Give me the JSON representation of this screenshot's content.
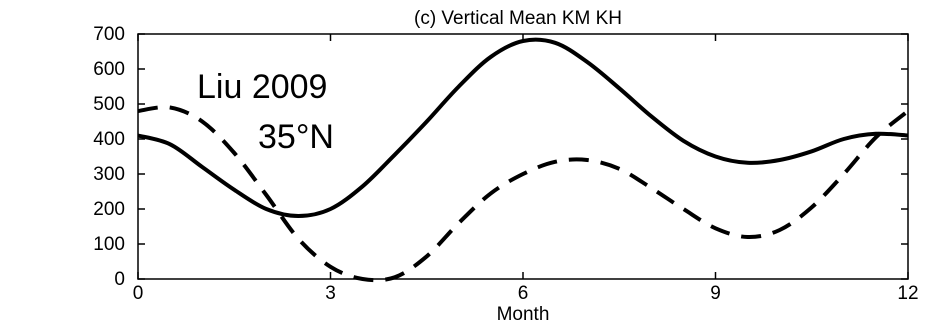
{
  "chart_data": {
    "type": "line",
    "title": "(c) Vertical Mean KM KH",
    "xlabel": "Month",
    "ylabel": "",
    "xlim": [
      0,
      12
    ],
    "ylim": [
      0,
      700
    ],
    "xticks": [
      0,
      3,
      6,
      9,
      12
    ],
    "yticks": [
      0,
      100,
      200,
      300,
      400,
      500,
      600,
      700
    ],
    "grid": false,
    "annotations": [
      "Liu 2009",
      "35°N"
    ],
    "series": [
      {
        "style": "solid",
        "color": "#000000",
        "x": [
          0,
          0.5,
          1,
          1.5,
          2,
          2.5,
          3,
          3.5,
          4,
          4.5,
          5,
          5.5,
          6,
          6.5,
          7,
          7.5,
          8,
          8.5,
          9,
          9.5,
          10,
          10.5,
          11,
          11.5,
          12
        ],
        "y": [
          410,
          385,
          320,
          255,
          200,
          180,
          200,
          265,
          355,
          450,
          550,
          635,
          680,
          675,
          620,
          545,
          465,
          395,
          350,
          332,
          340,
          365,
          400,
          415,
          410
        ]
      },
      {
        "style": "dashed",
        "color": "#000000",
        "x": [
          0,
          0.5,
          1,
          1.5,
          2,
          2.5,
          3,
          3.5,
          4,
          4.5,
          5,
          5.5,
          6,
          6.5,
          7,
          7.5,
          8,
          8.5,
          9,
          9.5,
          10,
          10.5,
          11,
          11.5,
          12
        ],
        "y": [
          480,
          490,
          450,
          360,
          240,
          115,
          35,
          0,
          5,
          65,
          160,
          245,
          300,
          335,
          340,
          315,
          260,
          200,
          145,
          120,
          140,
          205,
          300,
          405,
          480
        ]
      }
    ]
  }
}
